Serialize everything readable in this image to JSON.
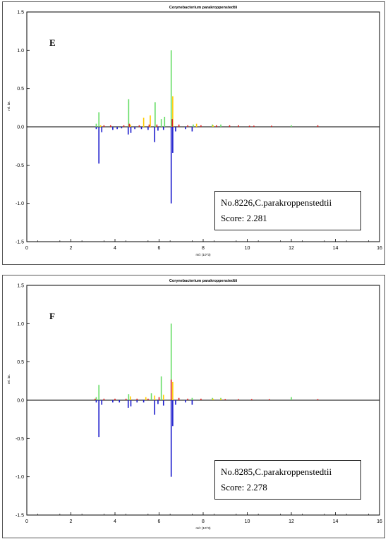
{
  "chart_data": [
    {
      "type": "bar",
      "panel_letter": "E",
      "title": "Corynebacterium parakroppenstedtii",
      "xlabel": "m/z (10^3)",
      "ylabel": "rel. int.",
      "xlim": [
        0,
        16
      ],
      "ylim": [
        -1.5,
        1.5
      ],
      "x_ticks": [
        "0",
        "2",
        "4",
        "6",
        "8",
        "10",
        "12",
        "14",
        "16"
      ],
      "y_ticks": [
        "1.5",
        "1.0",
        "0.5",
        "0.0",
        "-0.5",
        "-1.0",
        "-1.5"
      ],
      "legend": {
        "line1": "No.8226,C.parakroppenstedtii",
        "line2": "Score: 2.281"
      },
      "series": [
        {
          "color": "#66dd66",
          "points": [
            [
              3.15,
              0.04
            ],
            [
              3.27,
              0.19
            ],
            [
              4.62,
              0.36
            ],
            [
              5.82,
              0.32
            ],
            [
              6.1,
              0.1
            ],
            [
              6.25,
              0.13
            ],
            [
              6.55,
              1.0
            ],
            [
              7.55,
              0.03
            ],
            [
              8.42,
              0.03
            ],
            [
              8.8,
              0.03
            ],
            [
              12.0,
              0.02
            ]
          ]
        },
        {
          "color": "#ffcc00",
          "points": [
            [
              5.3,
              0.12
            ],
            [
              5.6,
              0.15
            ],
            [
              6.62,
              0.4
            ],
            [
              7.7,
              0.04
            ],
            [
              8.45,
              0.02
            ],
            [
              3.35,
              0.02
            ],
            [
              4.7,
              0.03
            ]
          ]
        },
        {
          "color": "#dd2222",
          "points": [
            [
              3.5,
              0.02
            ],
            [
              3.8,
              0.02
            ],
            [
              4.4,
              0.02
            ],
            [
              4.65,
              0.04
            ],
            [
              5.1,
              0.02
            ],
            [
              5.55,
              0.03
            ],
            [
              5.9,
              0.03
            ],
            [
              6.6,
              0.1
            ],
            [
              6.9,
              0.03
            ],
            [
              7.3,
              0.02
            ],
            [
              7.9,
              0.02
            ],
            [
              8.6,
              0.02
            ],
            [
              9.2,
              0.02
            ],
            [
              9.6,
              0.02
            ],
            [
              10.1,
              0.015
            ],
            [
              10.3,
              0.015
            ],
            [
              11.1,
              0.015
            ],
            [
              13.2,
              0.02
            ]
          ]
        },
        {
          "color": "#1a1acc",
          "points": [
            [
              3.15,
              -0.03
            ],
            [
              3.27,
              -0.48
            ],
            [
              3.4,
              -0.07
            ],
            [
              3.9,
              -0.04
            ],
            [
              4.1,
              -0.03
            ],
            [
              4.3,
              -0.02
            ],
            [
              4.6,
              -0.1
            ],
            [
              4.72,
              -0.08
            ],
            [
              4.9,
              -0.03
            ],
            [
              5.2,
              -0.03
            ],
            [
              5.5,
              -0.04
            ],
            [
              5.8,
              -0.2
            ],
            [
              5.95,
              -0.05
            ],
            [
              6.2,
              -0.04
            ],
            [
              6.55,
              -1.0
            ],
            [
              6.62,
              -0.34
            ],
            [
              6.75,
              -0.06
            ],
            [
              7.2,
              -0.03
            ],
            [
              7.5,
              -0.06
            ]
          ]
        }
      ]
    },
    {
      "type": "bar",
      "panel_letter": "F",
      "title": "Corynebacterium parakroppenstedtii",
      "xlabel": "m/z (10^3)",
      "ylabel": "rel. int.",
      "xlim": [
        0,
        16
      ],
      "ylim": [
        -1.5,
        1.5
      ],
      "x_ticks": [
        "0",
        "2",
        "4",
        "6",
        "8",
        "10",
        "12",
        "14",
        "16"
      ],
      "y_ticks": [
        "1.5",
        "1.0",
        "0.5",
        "0.0",
        "-0.5",
        "-1.0",
        "-1.5"
      ],
      "legend": {
        "line1": "No.8285,C.parakroppenstedtii",
        "line2": "Score: 2.278"
      },
      "series": [
        {
          "color": "#66dd66",
          "points": [
            [
              3.15,
              0.04
            ],
            [
              3.27,
              0.2
            ],
            [
              4.62,
              0.08
            ],
            [
              5.65,
              0.09
            ],
            [
              6.1,
              0.31
            ],
            [
              6.55,
              1.0
            ],
            [
              7.5,
              0.03
            ],
            [
              8.42,
              0.03
            ],
            [
              8.8,
              0.03
            ],
            [
              12.0,
              0.04
            ]
          ]
        },
        {
          "color": "#ffcc00",
          "points": [
            [
              4.7,
              0.05
            ],
            [
              5.4,
              0.04
            ],
            [
              5.8,
              0.06
            ],
            [
              6.2,
              0.07
            ],
            [
              6.62,
              0.24
            ],
            [
              8.45,
              0.02
            ],
            [
              8.8,
              0.02
            ]
          ]
        },
        {
          "color": "#dd2222",
          "points": [
            [
              3.1,
              0.02
            ],
            [
              3.5,
              0.02
            ],
            [
              4.0,
              0.02
            ],
            [
              4.5,
              0.02
            ],
            [
              5.0,
              0.02
            ],
            [
              5.5,
              0.02
            ],
            [
              6.0,
              0.04
            ],
            [
              6.55,
              0.27
            ],
            [
              6.9,
              0.03
            ],
            [
              7.3,
              0.02
            ],
            [
              7.9,
              0.02
            ],
            [
              9.0,
              0.015
            ],
            [
              9.6,
              0.015
            ],
            [
              10.2,
              0.015
            ],
            [
              11.0,
              0.015
            ],
            [
              13.2,
              0.015
            ]
          ]
        },
        {
          "color": "#1a1acc",
          "points": [
            [
              3.15,
              -0.03
            ],
            [
              3.27,
              -0.48
            ],
            [
              3.4,
              -0.06
            ],
            [
              3.9,
              -0.03
            ],
            [
              4.2,
              -0.03
            ],
            [
              4.6,
              -0.1
            ],
            [
              4.72,
              -0.08
            ],
            [
              5.0,
              -0.03
            ],
            [
              5.3,
              -0.03
            ],
            [
              5.8,
              -0.19
            ],
            [
              5.95,
              -0.05
            ],
            [
              6.2,
              -0.07
            ],
            [
              6.55,
              -1.0
            ],
            [
              6.62,
              -0.34
            ],
            [
              6.75,
              -0.06
            ],
            [
              7.2,
              -0.03
            ],
            [
              7.5,
              -0.06
            ]
          ]
        }
      ]
    }
  ]
}
